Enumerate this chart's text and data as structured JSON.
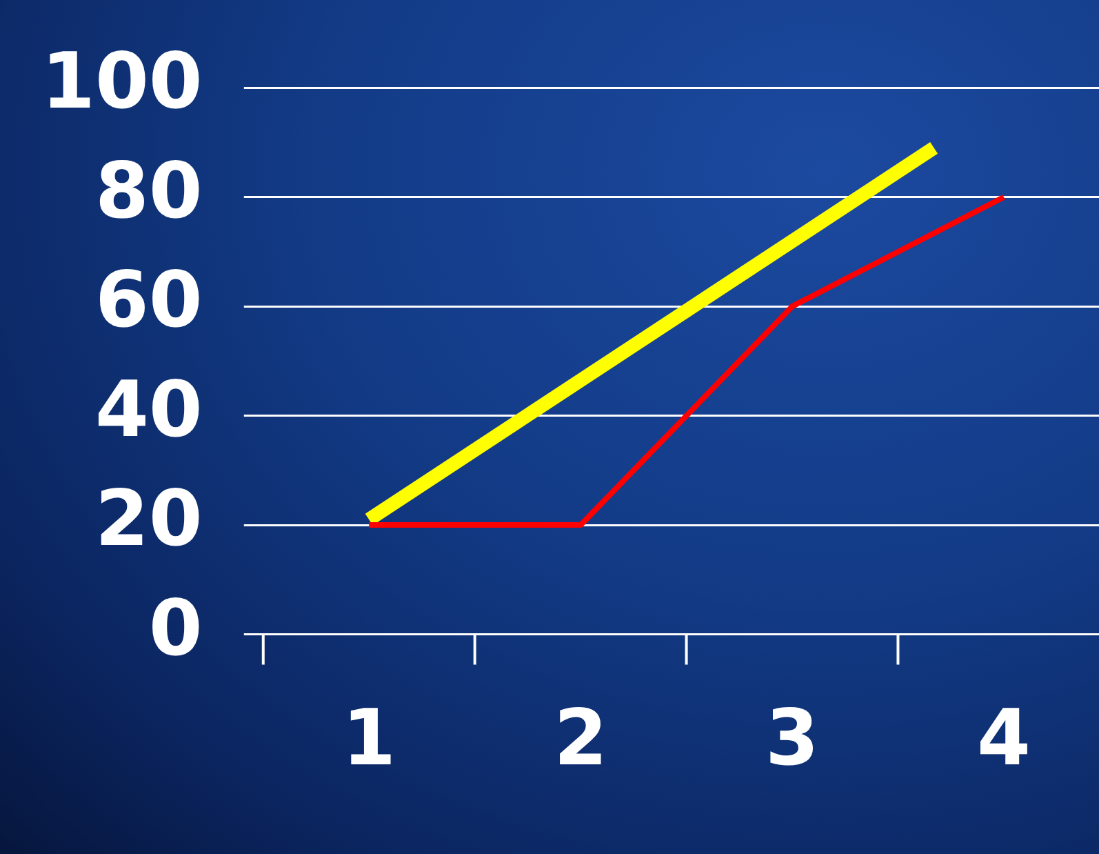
{
  "chart_data": {
    "type": "line",
    "series": [
      {
        "color": "#ff0000",
        "x": [
          1,
          2,
          3,
          4
        ],
        "values": [
          20,
          20,
          60,
          80
        ]
      },
      {
        "color": "#ffff00",
        "x": [
          1,
          3.67
        ],
        "values": [
          21,
          89
        ]
      }
    ],
    "xlim": [
      0.5,
      4.45
    ],
    "xticks": [
      1,
      2,
      3,
      4
    ],
    "ylim": [
      0,
      100
    ],
    "yticks": [
      0,
      20,
      40,
      60,
      80,
      100
    ],
    "grid": "y",
    "legend": false,
    "marker": "none"
  }
}
